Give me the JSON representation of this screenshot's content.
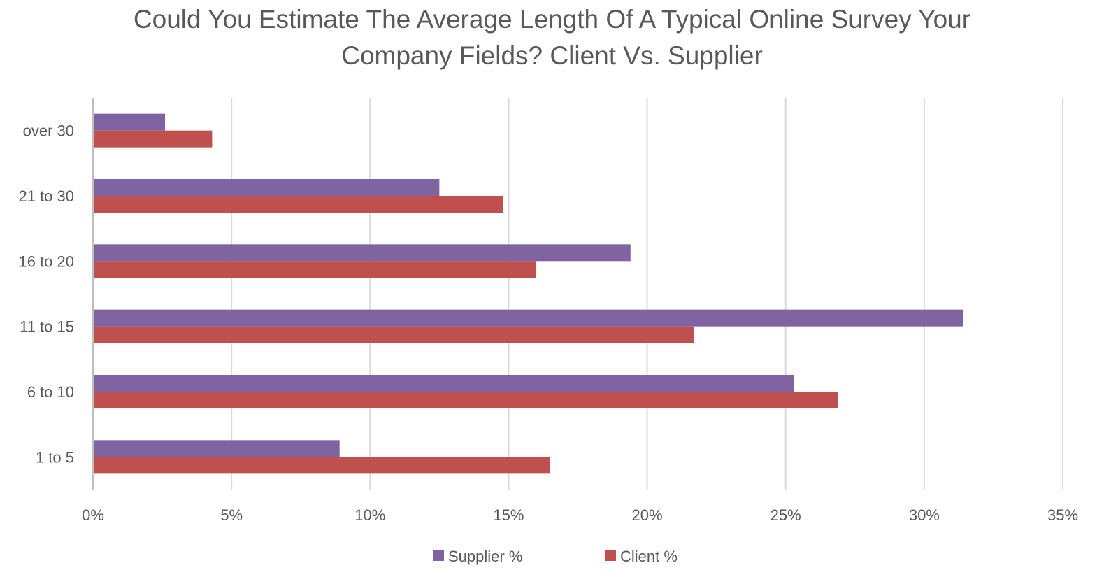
{
  "chart_data": {
    "type": "bar",
    "orientation": "horizontal",
    "title_lines": [
      "Could You Estimate The Average Length Of A Typical Online Survey Your",
      "Company Fields? Client Vs. Supplier"
    ],
    "categories": [
      "1 to 5",
      "6 to 10",
      "11 to 15",
      "16 to 20",
      "21 to 30",
      "over 30"
    ],
    "series": [
      {
        "name": "Supplier %",
        "color": "#8064a2",
        "values": [
          8.9,
          25.3,
          31.4,
          19.4,
          12.5,
          2.6
        ]
      },
      {
        "name": "Client %",
        "color": "#c0504d",
        "values": [
          16.5,
          26.9,
          21.7,
          16.0,
          14.8,
          4.3
        ]
      }
    ],
    "xlim": [
      0,
      35
    ],
    "xticks": [
      0,
      5,
      10,
      15,
      20,
      25,
      30,
      35
    ],
    "tick_format": "percent",
    "grid": "vertical",
    "legend": "bottom",
    "xlabel": "",
    "ylabel": ""
  }
}
